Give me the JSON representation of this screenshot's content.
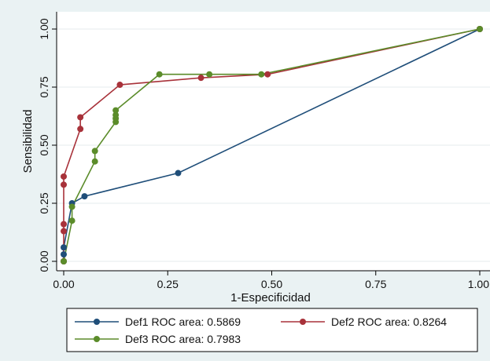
{
  "chart_data": {
    "type": "line",
    "xlabel": "1-Especificidad",
    "ylabel": "Sensibilidad",
    "xlim": [
      0,
      1
    ],
    "ylim": [
      0,
      1
    ],
    "x_ticks": [
      "0.00",
      "0.25",
      "0.50",
      "0.75",
      "1.00"
    ],
    "y_ticks": [
      "0.00",
      "0.25",
      "0.50",
      "0.75",
      "1.00"
    ],
    "grid": true,
    "legend_position": "bottom",
    "series": [
      {
        "name": "Def1 ROC area: 0.5869",
        "color": "#1f4e79",
        "points": [
          [
            0,
            0
          ],
          [
            0,
            0.03
          ],
          [
            0,
            0.06
          ],
          [
            0.02,
            0.25
          ],
          [
            0.05,
            0.28
          ],
          [
            0.275,
            0.38
          ],
          [
            1,
            1
          ]
        ]
      },
      {
        "name": "Def2 ROC area: 0.8264",
        "color": "#a8323a",
        "points": [
          [
            0,
            0
          ],
          [
            0,
            0.13
          ],
          [
            0,
            0.16
          ],
          [
            0,
            0.33
          ],
          [
            0,
            0.365
          ],
          [
            0.04,
            0.57
          ],
          [
            0.04,
            0.62
          ],
          [
            0.135,
            0.76
          ],
          [
            0.33,
            0.79
          ],
          [
            0.49,
            0.805
          ],
          [
            1,
            1
          ]
        ]
      },
      {
        "name": "Def3 ROC area: 0.7983",
        "color": "#5b8c2a",
        "points": [
          [
            0,
            0
          ],
          [
            0.02,
            0.175
          ],
          [
            0.02,
            0.235
          ],
          [
            0.075,
            0.43
          ],
          [
            0.075,
            0.475
          ],
          [
            0.125,
            0.6
          ],
          [
            0.125,
            0.615
          ],
          [
            0.125,
            0.63
          ],
          [
            0.125,
            0.65
          ],
          [
            0.23,
            0.805
          ],
          [
            0.35,
            0.805
          ],
          [
            0.475,
            0.805
          ],
          [
            1,
            1
          ]
        ]
      }
    ]
  }
}
